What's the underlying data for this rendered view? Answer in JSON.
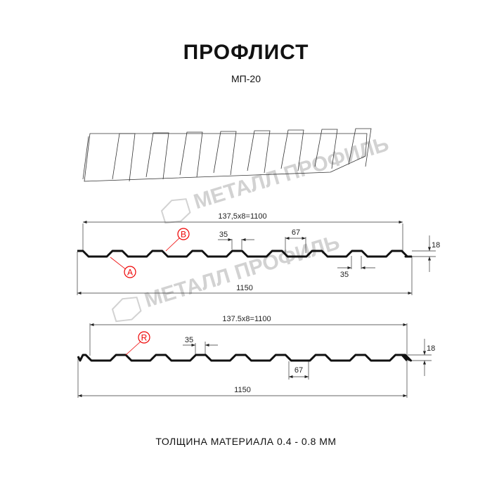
{
  "header": {
    "title": "ПРОФЛИСТ",
    "subtitle": "МП-20"
  },
  "watermark": {
    "text": "МЕТАЛЛ ПРОФИЛЬ"
  },
  "profile_1": {
    "pitch_dim": "137,5x8=1100",
    "width_dim": "1150",
    "crest_dim": "35",
    "trough_dim": "67",
    "bottom_crest_dim": "35",
    "height_dim": "18",
    "markers": [
      "A",
      "B"
    ]
  },
  "profile_2": {
    "pitch_dim": "137.5x8=1100",
    "width_dim": "1150",
    "crest_dim": "35",
    "trough_dim": "67",
    "height_dim": "18",
    "markers": [
      "R"
    ]
  },
  "footer": {
    "thickness": "ТОЛЩИНА МАТЕРИАЛА 0.4 - 0.8 ММ"
  },
  "colors": {
    "profile": "#111111",
    "marker": "#e00000",
    "watermark": "#d2d2d2"
  }
}
